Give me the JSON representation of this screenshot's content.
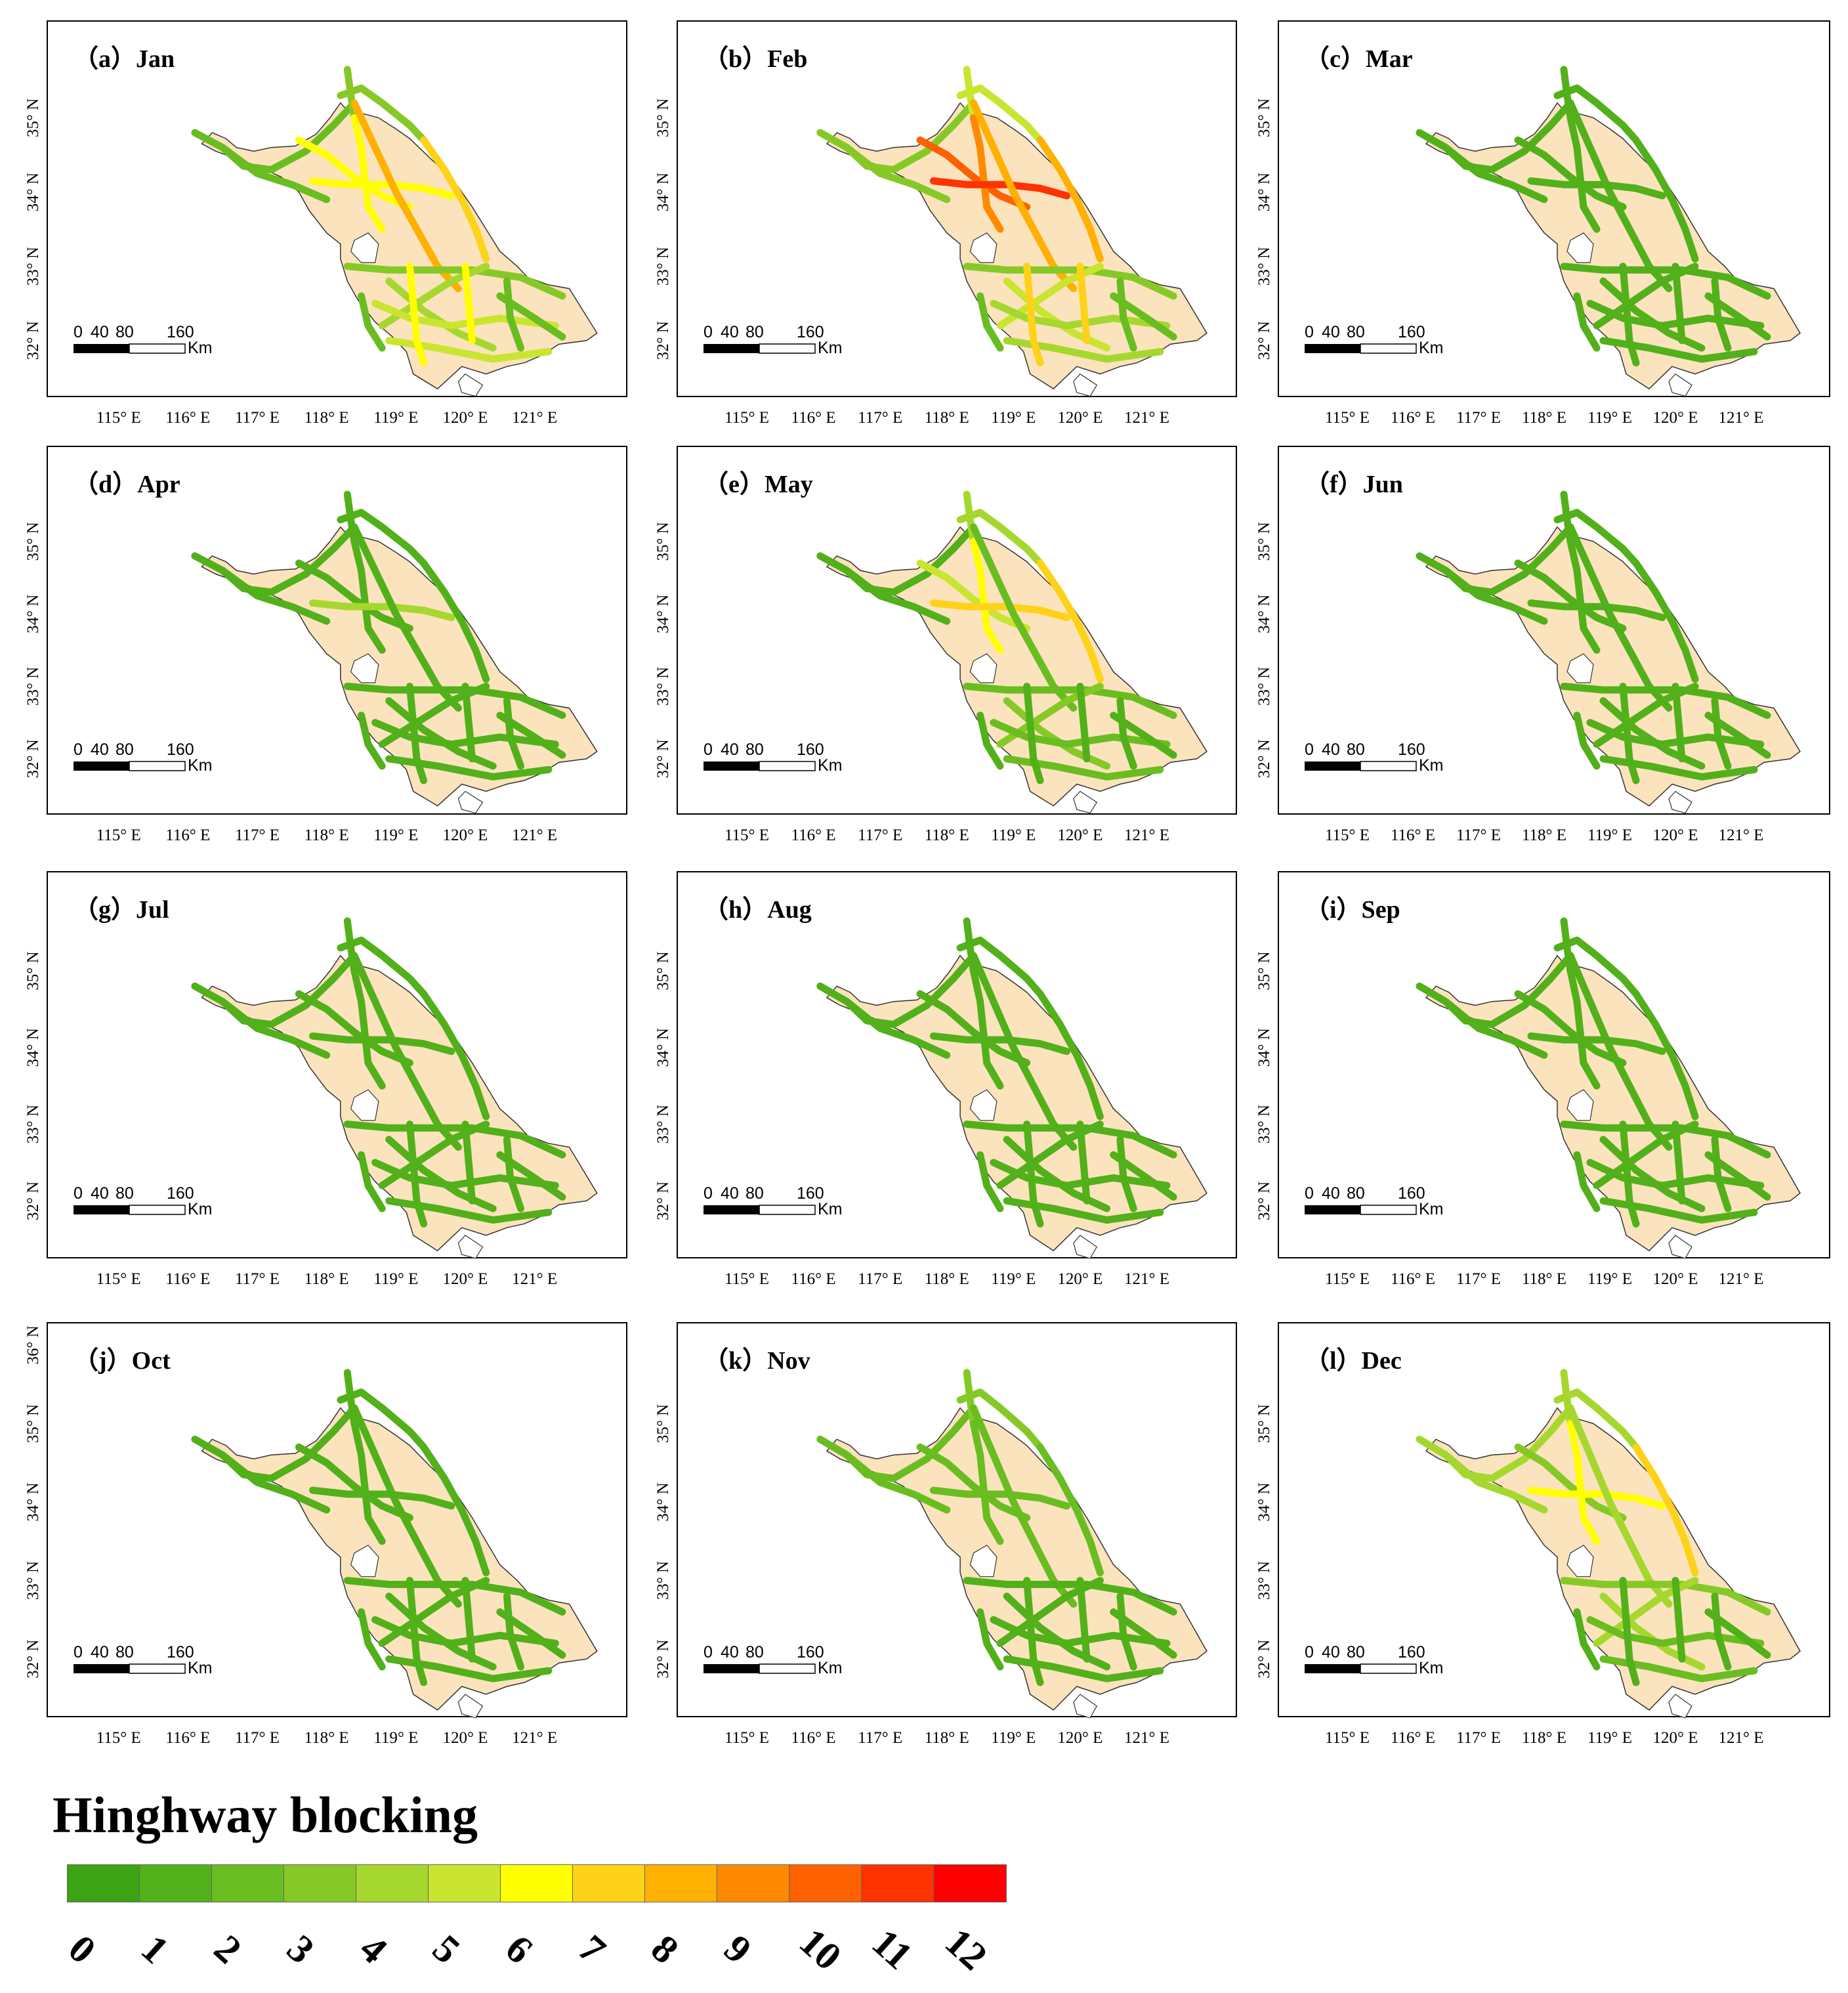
{
  "panels": [
    {
      "label": "（a）Jan",
      "month": "Jan",
      "levels": [
        2,
        3,
        6,
        6,
        6,
        7,
        8,
        3,
        4,
        5,
        6,
        2
      ]
    },
    {
      "label": "（b）Feb",
      "month": "Feb",
      "levels": [
        3,
        5,
        10,
        9,
        11,
        8,
        8,
        3,
        5,
        4,
        7,
        2
      ]
    },
    {
      "label": "（c）Mar",
      "month": "Mar",
      "levels": [
        1,
        1,
        1,
        1,
        1,
        1,
        1,
        1,
        1,
        1,
        1,
        1
      ]
    },
    {
      "label": "（d）Apr",
      "month": "Apr",
      "levels": [
        1,
        1,
        1,
        1,
        4,
        1,
        1,
        1,
        1,
        1,
        1,
        1
      ]
    },
    {
      "label": "（e）May",
      "month": "May",
      "levels": [
        1,
        4,
        5,
        6,
        7,
        7,
        2,
        2,
        3,
        2,
        1,
        1
      ]
    },
    {
      "label": "（f）Jun",
      "month": "Jun",
      "levels": [
        1,
        1,
        1,
        1,
        1,
        1,
        1,
        1,
        1,
        1,
        1,
        1
      ]
    },
    {
      "label": "（g）Jul",
      "month": "Jul",
      "levels": [
        1,
        1,
        1,
        1,
        1,
        1,
        1,
        1,
        1,
        1,
        1,
        1
      ]
    },
    {
      "label": "（h）Aug",
      "month": "Aug",
      "levels": [
        1,
        1,
        1,
        1,
        1,
        1,
        1,
        1,
        1,
        1,
        1,
        1
      ]
    },
    {
      "label": "（i）Sep",
      "month": "Sep",
      "levels": [
        1,
        1,
        1,
        1,
        1,
        1,
        1,
        1,
        1,
        1,
        1,
        1
      ]
    },
    {
      "label": "（j）Oct",
      "month": "Oct",
      "levels": [
        1,
        1,
        1,
        1,
        1,
        1,
        1,
        1,
        1,
        1,
        1,
        1
      ]
    },
    {
      "label": "（k）Nov",
      "month": "Nov",
      "levels": [
        2,
        3,
        2,
        2,
        2,
        2,
        2,
        1,
        1,
        1,
        1,
        1
      ]
    },
    {
      "label": "（l）Dec",
      "month": "Dec",
      "levels": [
        4,
        4,
        3,
        6,
        6,
        7,
        4,
        3,
        4,
        2,
        1,
        1
      ]
    }
  ],
  "axes": {
    "lon_ticks": [
      "115° E",
      "116° E",
      "117° E",
      "118° E",
      "119° E",
      "120° E",
      "121° E"
    ],
    "lat_ticks": [
      "32° N",
      "33° N",
      "34° N",
      "35° N"
    ],
    "extra_lat_tick": "36° N"
  },
  "scale_bar": {
    "labels": [
      "0",
      "40",
      "80",
      "160"
    ],
    "unit": "Km"
  },
  "legend": {
    "title": "Hinghway blocking",
    "labels": [
      "0",
      "1",
      "2",
      "3",
      "4",
      "5",
      "6",
      "7",
      "8",
      "9",
      "10",
      "11",
      "12"
    ],
    "colors": [
      "#3ca314",
      "#52b01a",
      "#69bd20",
      "#86c927",
      "#a6d72e",
      "#c9e52f",
      "#ffff00",
      "#ffd21a",
      "#ffb000",
      "#ff8a00",
      "#ff6000",
      "#ff3300",
      "#ff0000"
    ]
  },
  "map_colors": {
    "land": "#fbe3bd",
    "outline": "#333333",
    "lake": "#ffffff"
  }
}
